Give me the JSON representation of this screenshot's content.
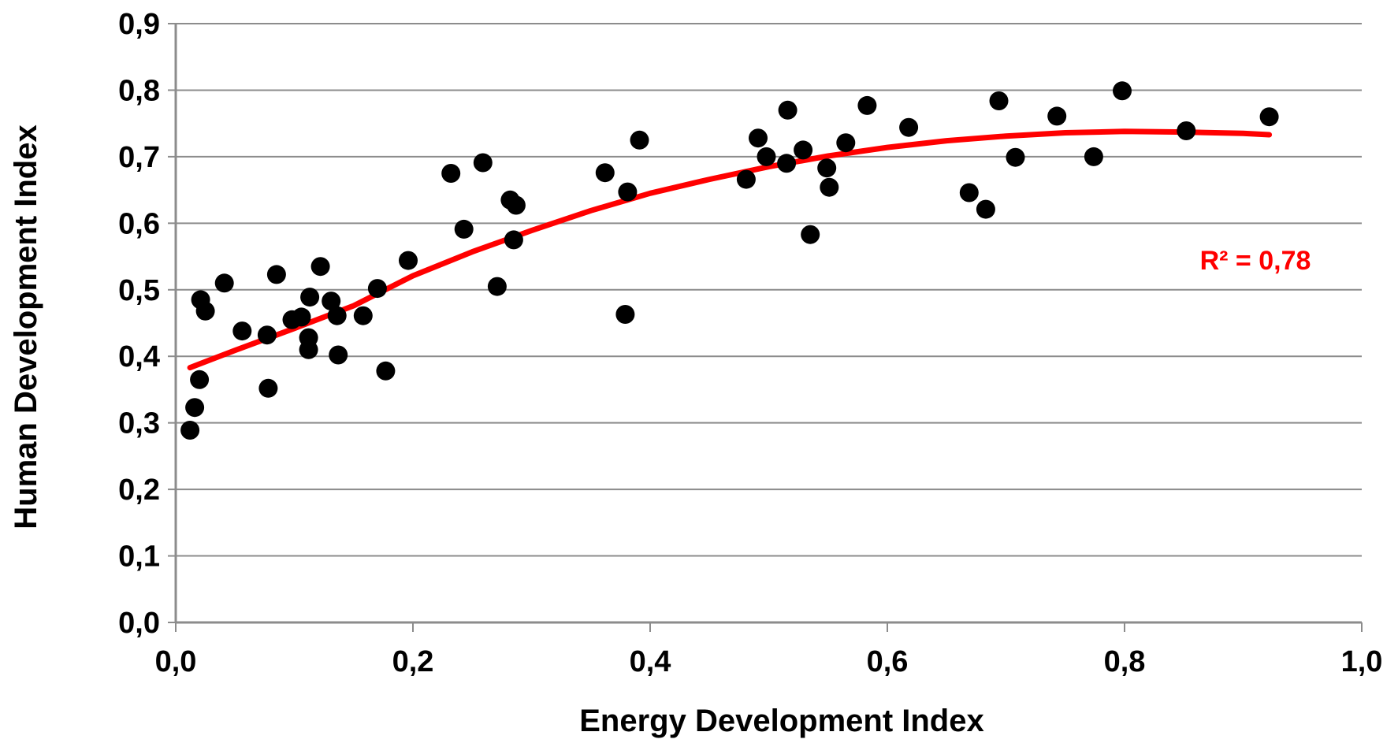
{
  "chart_data": {
    "type": "scatter",
    "xlabel": "Energy Development Index",
    "ylabel": "Human Development Index",
    "xlim": [
      0.0,
      1.0
    ],
    "ylim": [
      0.0,
      0.9
    ],
    "x_ticks": [
      "0,0",
      "0,2",
      "0,4",
      "0,6",
      "0,8",
      "1,0"
    ],
    "y_ticks": [
      "0,0",
      "0,1",
      "0,2",
      "0,3",
      "0,4",
      "0,5",
      "0,6",
      "0,7",
      "0,8",
      "0,9"
    ],
    "grid": "horizontal",
    "colors": {
      "points": "#000000",
      "trendline": "#ff0000",
      "grid": "#8c8c8c"
    },
    "points": [
      {
        "x": 0.012,
        "y": 0.289
      },
      {
        "x": 0.016,
        "y": 0.323
      },
      {
        "x": 0.02,
        "y": 0.365
      },
      {
        "x": 0.021,
        "y": 0.485
      },
      {
        "x": 0.025,
        "y": 0.468
      },
      {
        "x": 0.041,
        "y": 0.51
      },
      {
        "x": 0.056,
        "y": 0.438
      },
      {
        "x": 0.077,
        "y": 0.432
      },
      {
        "x": 0.078,
        "y": 0.352
      },
      {
        "x": 0.085,
        "y": 0.523
      },
      {
        "x": 0.098,
        "y": 0.455
      },
      {
        "x": 0.106,
        "y": 0.459
      },
      {
        "x": 0.112,
        "y": 0.428
      },
      {
        "x": 0.112,
        "y": 0.41
      },
      {
        "x": 0.113,
        "y": 0.489
      },
      {
        "x": 0.122,
        "y": 0.535
      },
      {
        "x": 0.131,
        "y": 0.483
      },
      {
        "x": 0.136,
        "y": 0.461
      },
      {
        "x": 0.137,
        "y": 0.402
      },
      {
        "x": 0.158,
        "y": 0.461
      },
      {
        "x": 0.17,
        "y": 0.502
      },
      {
        "x": 0.177,
        "y": 0.378
      },
      {
        "x": 0.196,
        "y": 0.544
      },
      {
        "x": 0.232,
        "y": 0.675
      },
      {
        "x": 0.243,
        "y": 0.591
      },
      {
        "x": 0.259,
        "y": 0.691
      },
      {
        "x": 0.271,
        "y": 0.505
      },
      {
        "x": 0.282,
        "y": 0.635
      },
      {
        "x": 0.285,
        "y": 0.575
      },
      {
        "x": 0.287,
        "y": 0.627
      },
      {
        "x": 0.362,
        "y": 0.676
      },
      {
        "x": 0.379,
        "y": 0.463
      },
      {
        "x": 0.381,
        "y": 0.647
      },
      {
        "x": 0.391,
        "y": 0.725
      },
      {
        "x": 0.481,
        "y": 0.666
      },
      {
        "x": 0.491,
        "y": 0.728
      },
      {
        "x": 0.498,
        "y": 0.7
      },
      {
        "x": 0.515,
        "y": 0.69
      },
      {
        "x": 0.516,
        "y": 0.77
      },
      {
        "x": 0.529,
        "y": 0.71
      },
      {
        "x": 0.535,
        "y": 0.583
      },
      {
        "x": 0.549,
        "y": 0.683
      },
      {
        "x": 0.551,
        "y": 0.654
      },
      {
        "x": 0.565,
        "y": 0.721
      },
      {
        "x": 0.583,
        "y": 0.777
      },
      {
        "x": 0.618,
        "y": 0.744
      },
      {
        "x": 0.669,
        "y": 0.646
      },
      {
        "x": 0.683,
        "y": 0.621
      },
      {
        "x": 0.694,
        "y": 0.784
      },
      {
        "x": 0.708,
        "y": 0.699
      },
      {
        "x": 0.743,
        "y": 0.761
      },
      {
        "x": 0.774,
        "y": 0.7
      },
      {
        "x": 0.798,
        "y": 0.799
      },
      {
        "x": 0.852,
        "y": 0.739
      },
      {
        "x": 0.922,
        "y": 0.76
      }
    ],
    "trendline": {
      "type": "polynomial",
      "points": [
        {
          "x": 0.012,
          "y": 0.383
        },
        {
          "x": 0.05,
          "y": 0.409
        },
        {
          "x": 0.1,
          "y": 0.442
        },
        {
          "x": 0.15,
          "y": 0.476
        },
        {
          "x": 0.2,
          "y": 0.521
        },
        {
          "x": 0.25,
          "y": 0.557
        },
        {
          "x": 0.3,
          "y": 0.589
        },
        {
          "x": 0.35,
          "y": 0.619
        },
        {
          "x": 0.4,
          "y": 0.645
        },
        {
          "x": 0.45,
          "y": 0.666
        },
        {
          "x": 0.5,
          "y": 0.685
        },
        {
          "x": 0.55,
          "y": 0.701
        },
        {
          "x": 0.6,
          "y": 0.714
        },
        {
          "x": 0.65,
          "y": 0.724
        },
        {
          "x": 0.7,
          "y": 0.731
        },
        {
          "x": 0.75,
          "y": 0.736
        },
        {
          "x": 0.8,
          "y": 0.738
        },
        {
          "x": 0.85,
          "y": 0.737
        },
        {
          "x": 0.9,
          "y": 0.735
        },
        {
          "x": 0.922,
          "y": 0.733
        }
      ],
      "label": "R² = 0,78"
    }
  }
}
